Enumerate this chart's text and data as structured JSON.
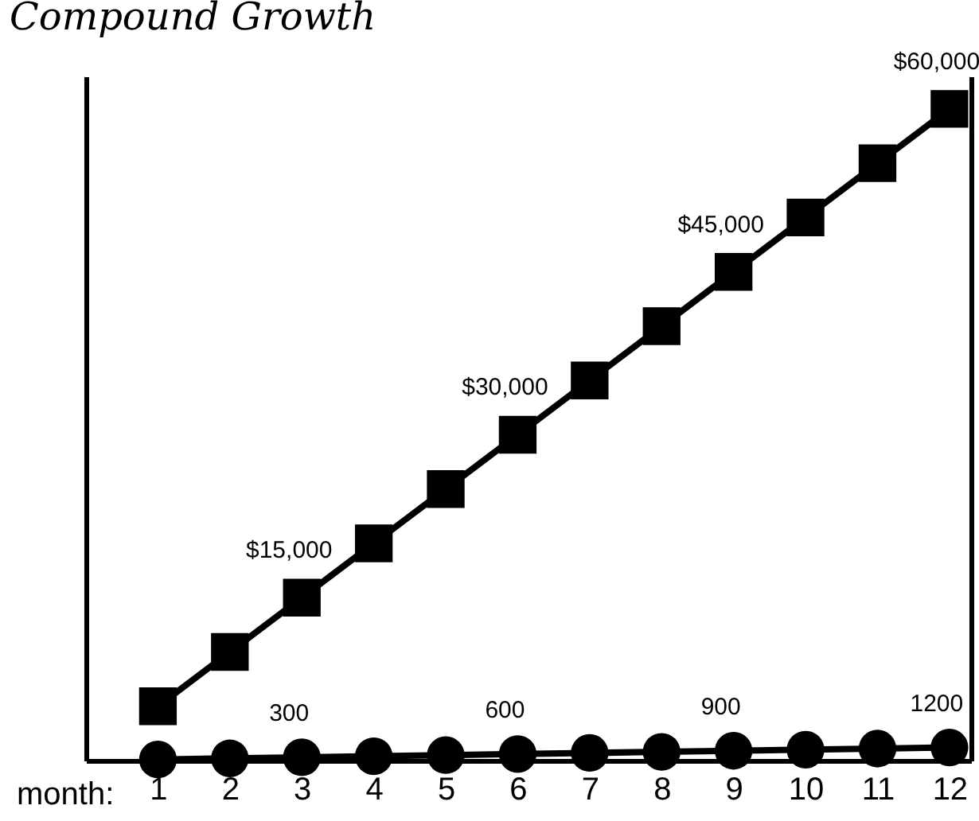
{
  "chart_data": {
    "type": "line",
    "title": "Compound Growth",
    "xlabel": "month:",
    "x": [
      1,
      2,
      3,
      4,
      5,
      6,
      7,
      8,
      9,
      10,
      11,
      12
    ],
    "xlim": [
      0,
      12.3
    ],
    "xticks": [
      1,
      2,
      3,
      4,
      5,
      6,
      7,
      8,
      9,
      10,
      11,
      12
    ],
    "ylim": [
      0,
      63000
    ],
    "series": [
      {
        "color": "#000000",
        "marker": "square",
        "values": [
          5000,
          10000,
          15000,
          20000,
          25000,
          30000,
          35000,
          40000,
          45000,
          50000,
          55000,
          60000
        ],
        "value_labels": [
          null,
          null,
          "$15,000",
          null,
          null,
          "$30,000",
          null,
          null,
          "$45,000",
          null,
          null,
          "$60,000"
        ]
      },
      {
        "color": "#000000",
        "marker": "circle",
        "values": [
          100,
          200,
          300,
          400,
          500,
          600,
          700,
          800,
          900,
          1000,
          1100,
          1200
        ],
        "value_labels": [
          null,
          null,
          "300",
          null,
          null,
          "600",
          null,
          null,
          "900",
          null,
          null,
          "1200"
        ]
      }
    ]
  }
}
